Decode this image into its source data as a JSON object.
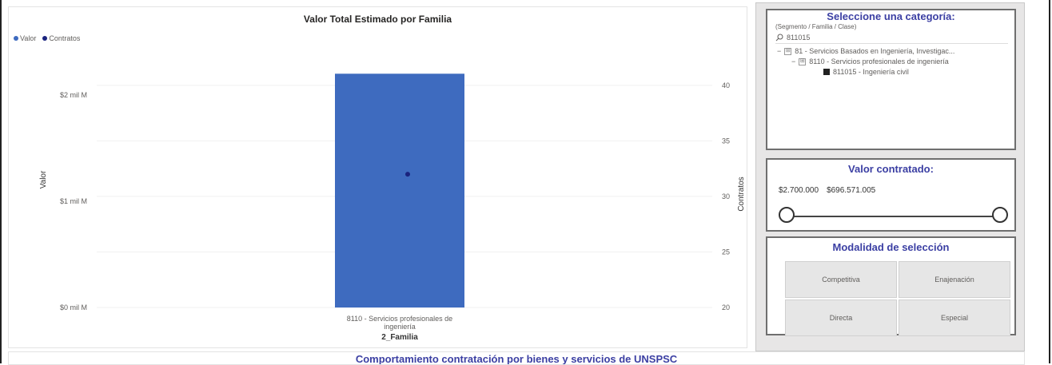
{
  "chart": {
    "title": "Valor Total Estimado por Familia",
    "legend": [
      {
        "label": "Valor",
        "color": "#3e6bbf"
      },
      {
        "label": "Contratos",
        "color": "#1a237e"
      }
    ],
    "y_left_title": "Valor",
    "y_right_title": "Contratos",
    "x_title": "2_Familia",
    "y_left_ticks": [
      "$2 mil M",
      "$1 mil M",
      "$0 mil M"
    ],
    "y_right_ticks": [
      "40",
      "35",
      "30",
      "25",
      "20"
    ],
    "category_label_line1": "8110 - Servicios profesionales de",
    "category_label_line2": "ingeniería"
  },
  "chart_data": {
    "type": "bar",
    "categories": [
      "8110 - Servicios profesionales de ingeniería"
    ],
    "series": [
      {
        "name": "Valor",
        "values": [
          2.2
        ],
        "axis": "left",
        "color": "#3e6bbf"
      },
      {
        "name": "Contratos",
        "values": [
          32
        ],
        "axis": "right",
        "color": "#1a237e",
        "mark": "point"
      }
    ],
    "title": "Valor Total Estimado por Familia",
    "xlabel": "2_Familia",
    "ylabel": "Valor",
    "y2label": "Contratos",
    "ylim": [
      0,
      2.3
    ],
    "y2lim": [
      20,
      42
    ],
    "grid": true,
    "legend": "top-left"
  },
  "category_filter": {
    "title": "Seleccione una categoría:",
    "subtitle": "(Segmento / Familia / Clase)",
    "search_value": "811015",
    "tree": [
      {
        "level": 0,
        "toggle": "−",
        "box": "⊞",
        "label": "81 - Servicios Basados en Ingeniería, Investigac..."
      },
      {
        "level": 1,
        "toggle": "−",
        "box": "⊞",
        "label": "8110 - Servicios profesionales de ingeniería"
      },
      {
        "level": 2,
        "toggle": "",
        "box": "checked",
        "label": "811015 - Ingeniería civil"
      }
    ]
  },
  "valor_filter": {
    "title": "Valor contratado:",
    "min_value": "$2.700.000",
    "max_value": "$696.571.005",
    "range": [
      0,
      1
    ]
  },
  "modalidad": {
    "title": "Modalidad de selección",
    "options": [
      "Competitiva",
      "Enajenación",
      "Directa",
      "Especial"
    ]
  },
  "bottom": {
    "title": "Comportamiento contratación por bienes y servicios de UNSPSC"
  }
}
